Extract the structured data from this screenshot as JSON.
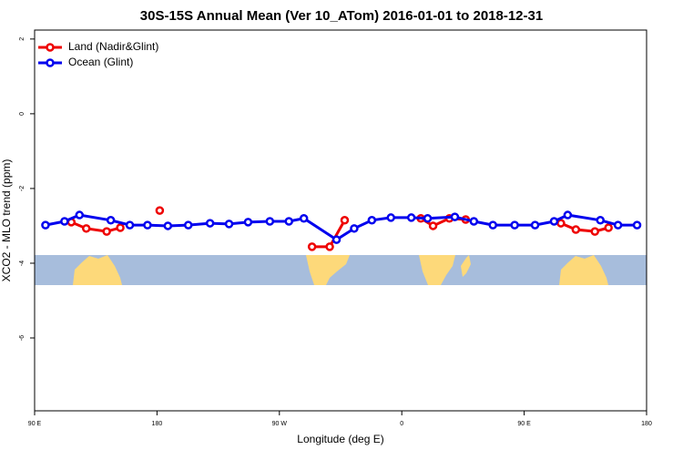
{
  "chart_data": {
    "type": "line",
    "title": "30S-15S Annual Mean (Ver 10_ATom)   2016-01-01 to 2018-12-31",
    "xlabel": "Longitude (deg E)",
    "ylabel": "XCO2 - MLO trend (ppm)",
    "xlim": [
      90,
      540
    ],
    "ylim": [
      -7.95,
      2.24
    ],
    "xticks": [
      {
        "value": 90,
        "label": "90 E"
      },
      180,
      {
        "value": 270,
        "label": "90 W"
      },
      {
        "value": 360,
        "label": "0"
      },
      {
        "value": 450,
        "label": "90 E"
      },
      {
        "value": 540,
        "label": "180"
      }
    ],
    "yticks": [
      2,
      0,
      -2,
      -4,
      -6
    ],
    "legend": "top-left",
    "series": [
      {
        "name": "Land (Nadir&Glint)",
        "color": "#ee0000",
        "x": [
          117,
          128,
          143,
          153,
          null,
          182,
          null,
          294,
          307,
          318,
          null,
          374,
          383,
          395,
          407,
          null,
          477,
          488,
          502,
          512
        ],
        "values": [
          -2.9,
          -3.07,
          -3.15,
          -3.05,
          null,
          -2.59,
          null,
          -3.56,
          -3.56,
          -2.85,
          null,
          -2.8,
          -3.0,
          -2.8,
          -2.83,
          null,
          -2.93,
          -3.1,
          -3.15,
          -3.05
        ]
      },
      {
        "name": "Ocean (Glint)",
        "color": "#0000ee",
        "x": [
          98,
          112,
          123,
          146,
          160,
          173,
          188,
          203,
          219,
          233,
          247,
          263,
          277,
          288,
          312,
          325,
          338,
          352,
          367,
          379,
          399,
          413,
          427,
          443,
          458,
          472,
          482,
          506,
          519,
          533
        ],
        "values": [
          -2.98,
          -2.88,
          -2.71,
          -2.85,
          -2.98,
          -2.98,
          -3.0,
          -2.98,
          -2.93,
          -2.95,
          -2.9,
          -2.88,
          -2.88,
          -2.8,
          -3.37,
          -3.07,
          -2.85,
          -2.78,
          -2.78,
          -2.8,
          -2.76,
          -2.88,
          -2.98,
          -2.98,
          -2.98,
          -2.88,
          -2.71,
          -2.85,
          -2.98,
          -2.98
        ]
      }
    ]
  }
}
